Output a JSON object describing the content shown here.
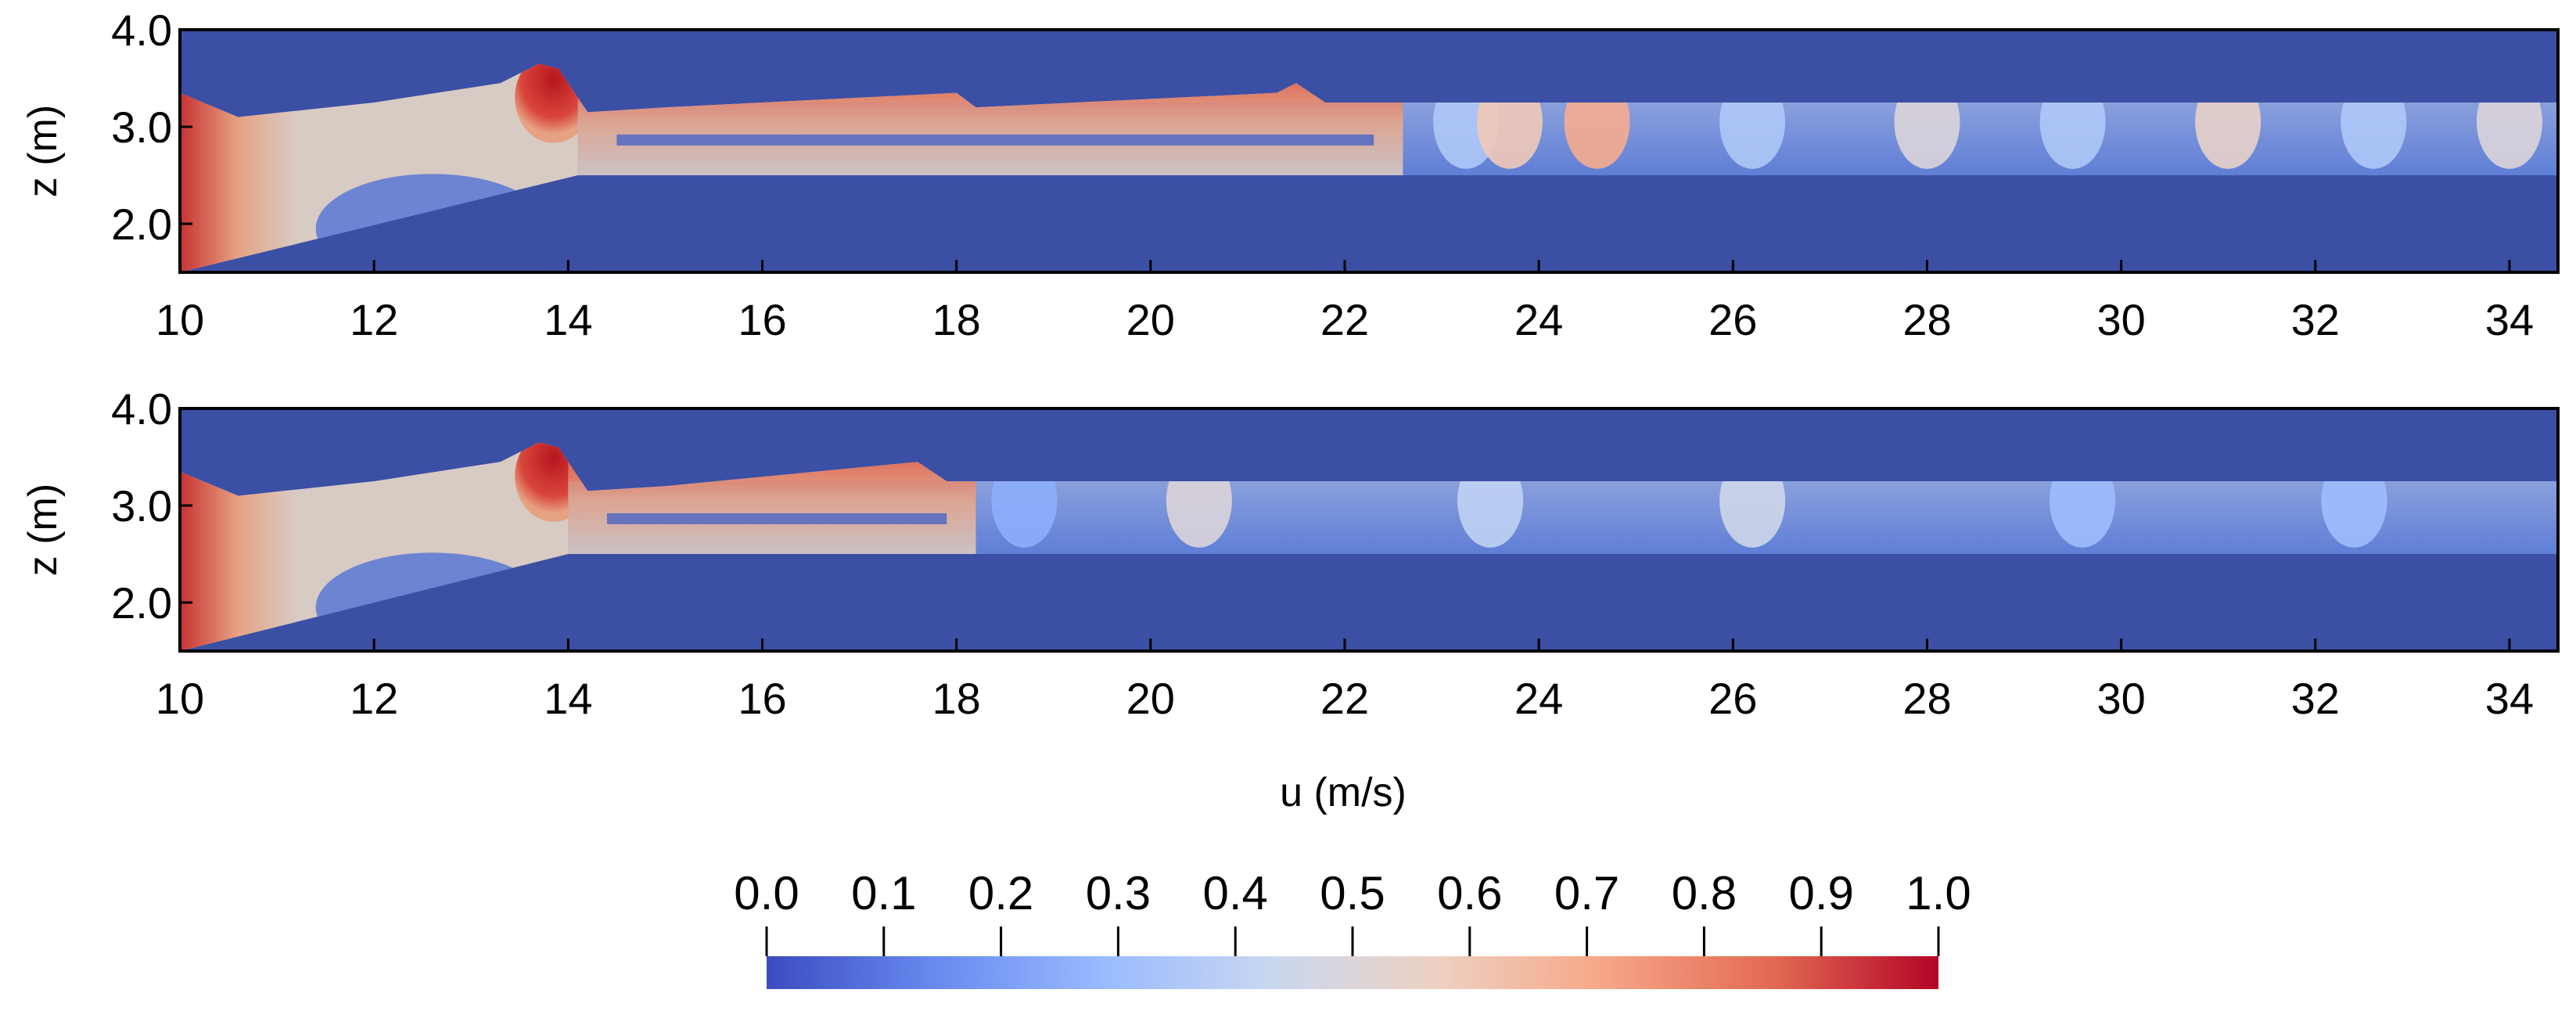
{
  "chart_data": [
    {
      "type": "heatmap",
      "name": "top-panel",
      "ylabel": "z (m)",
      "xlim": [
        10,
        34.5
      ],
      "ylim": [
        1.5,
        4.0
      ],
      "xticks": [
        "10",
        "12",
        "14",
        "16",
        "18",
        "20",
        "22",
        "24",
        "26",
        "28",
        "30",
        "32",
        "34"
      ],
      "yticks": [
        "2.0",
        "3.0",
        "4.0"
      ],
      "bed_profile": [
        [
          10,
          1.5
        ],
        [
          14.1,
          2.5
        ],
        [
          34.5,
          2.5
        ]
      ],
      "free_surface": [
        [
          10,
          3.35
        ],
        [
          10.6,
          3.1
        ],
        [
          12,
          3.25
        ],
        [
          13.3,
          3.45
        ],
        [
          13.7,
          3.65
        ],
        [
          13.9,
          3.6
        ],
        [
          14.2,
          3.15
        ],
        [
          15,
          3.2
        ],
        [
          18,
          3.35
        ],
        [
          18.2,
          3.2
        ],
        [
          21.3,
          3.35
        ],
        [
          21.5,
          3.45
        ],
        [
          21.8,
          3.25
        ],
        [
          34.5,
          3.25
        ]
      ],
      "jets": [
        {
          "x": 23.25,
          "v": 0.35
        },
        {
          "x": 23.7,
          "v": 0.6
        },
        {
          "x": 24.6,
          "v": 0.7
        },
        {
          "x": 26.2,
          "v": 0.35
        },
        {
          "x": 28.0,
          "v": 0.5
        },
        {
          "x": 29.5,
          "v": 0.35
        },
        {
          "x": 31.1,
          "v": 0.55
        },
        {
          "x": 32.6,
          "v": 0.35
        },
        {
          "x": 34.0,
          "v": 0.5
        }
      ]
    },
    {
      "type": "heatmap",
      "name": "bottom-panel",
      "xlabel": "u (m/s)",
      "ylabel": "z (m)",
      "xlim": [
        10,
        34.5
      ],
      "ylim": [
        1.5,
        4.0
      ],
      "xticks": [
        "10",
        "12",
        "14",
        "16",
        "18",
        "20",
        "22",
        "24",
        "26",
        "28",
        "30",
        "32",
        "34"
      ],
      "yticks": [
        "2.0",
        "3.0",
        "4.0"
      ],
      "bed_profile": [
        [
          10,
          1.5
        ],
        [
          14.0,
          2.5
        ],
        [
          34.5,
          2.5
        ]
      ],
      "free_surface": [
        [
          10,
          3.35
        ],
        [
          10.6,
          3.1
        ],
        [
          12,
          3.25
        ],
        [
          13.3,
          3.45
        ],
        [
          13.7,
          3.65
        ],
        [
          13.9,
          3.6
        ],
        [
          14.2,
          3.15
        ],
        [
          15,
          3.2
        ],
        [
          17.6,
          3.45
        ],
        [
          17.9,
          3.25
        ],
        [
          34.5,
          3.25
        ]
      ],
      "jets": [
        {
          "x": 18.7,
          "v": 0.25
        },
        {
          "x": 20.5,
          "v": 0.5
        },
        {
          "x": 23.5,
          "v": 0.4
        },
        {
          "x": 26.2,
          "v": 0.45
        },
        {
          "x": 29.6,
          "v": 0.3
        },
        {
          "x": 32.4,
          "v": 0.3
        }
      ]
    }
  ],
  "colorbar": {
    "ticks": [
      "0.0",
      "0.1",
      "0.2",
      "0.3",
      "0.4",
      "0.5",
      "0.6",
      "0.7",
      "0.8",
      "0.9",
      "1.0"
    ],
    "colormap": "cool-to-warm",
    "colors": [
      "#3b4cc0",
      "#6788ee",
      "#9abbff",
      "#c9d7f0",
      "#edd1c2",
      "#f7a889",
      "#e26952",
      "#b40426"
    ]
  },
  "colors": {
    "air": "#3b4fa4",
    "water_mid": "#d8cbc4",
    "water_low": "#5a78d6",
    "water_high": "#c0282d",
    "water_warm": "#e6a283"
  }
}
